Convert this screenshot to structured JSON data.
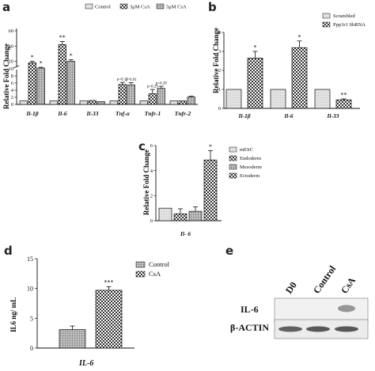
{
  "chart_data": [
    {
      "panel": "a",
      "type": "bar",
      "ylabel": "Relative Fold Change",
      "yticks": [
        "0",
        "2",
        "4",
        "6",
        "8",
        "10",
        "20",
        "40",
        "60"
      ],
      "categories": [
        "Il-1β",
        "Il-6",
        "Il-33",
        "Tnf-α",
        "Tnfr-1",
        "Tnfr-2"
      ],
      "series": [
        {
          "name": "Control",
          "values": [
            1,
            1,
            1,
            1,
            1,
            1
          ],
          "errors": [
            0,
            0,
            0,
            0,
            0,
            0
          ],
          "pattern": "light"
        },
        {
          "name": "3μM CsA",
          "values": [
            18,
            42,
            1.1,
            5.6,
            3.0,
            1.0
          ],
          "errors": [
            2,
            4,
            0.1,
            0.6,
            1.2,
            0.1
          ],
          "pattern": "check"
        },
        {
          "name": "5μM CsA",
          "values": [
            11,
            20,
            0.8,
            5.5,
            4.5,
            2.1
          ],
          "errors": [
            1,
            2,
            0.1,
            0.6,
            0.6,
            0.2
          ],
          "pattern": "dots"
        }
      ],
      "annotations": [
        {
          "cat": 0,
          "series": 1,
          "text": "*"
        },
        {
          "cat": 0,
          "series": 2,
          "text": "*"
        },
        {
          "cat": 1,
          "series": 1,
          "text": "**"
        },
        {
          "cat": 1,
          "series": 2,
          "text": "*"
        },
        {
          "cat": 3,
          "series": 1,
          "text": "p=0.17"
        },
        {
          "cat": 3,
          "series": 2,
          "text": "p=0.91"
        },
        {
          "cat": 4,
          "series": 1,
          "text": "p=0.29"
        },
        {
          "cat": 4,
          "series": 2,
          "text": "p=0.28"
        }
      ]
    },
    {
      "panel": "b",
      "type": "bar",
      "ylabel": "Relative Fold Change",
      "ylim": [
        0,
        4
      ],
      "yticks": [
        "0",
        "1",
        "2",
        "3",
        "4"
      ],
      "categories": [
        "Il-1β",
        "Il-6",
        "Il-33"
      ],
      "series": [
        {
          "name": "Scrambled",
          "values": [
            1,
            1,
            1
          ],
          "errors": [
            0,
            0,
            0
          ],
          "pattern": "light"
        },
        {
          "name": "Ppp3r1 ShRNA",
          "values": [
            2.65,
            3.2,
            0.45
          ],
          "errors": [
            0.35,
            0.35,
            0.05
          ],
          "pattern": "check"
        }
      ],
      "annotations": [
        {
          "cat": 0,
          "series": 1,
          "text": "*"
        },
        {
          "cat": 1,
          "series": 1,
          "text": "*"
        },
        {
          "cat": 2,
          "series": 1,
          "text": "**"
        }
      ]
    },
    {
      "panel": "c",
      "type": "bar",
      "ylabel": "Relative Fold Change",
      "ylim": [
        0,
        6
      ],
      "yticks": [
        "0",
        "2",
        "4",
        "6"
      ],
      "xlabel": "Il- 6",
      "series": [
        {
          "name": "mESC",
          "value": 1,
          "error": 0,
          "pattern": "light"
        },
        {
          "name": "Endoderm",
          "value": 0.55,
          "error": 0.4,
          "pattern": "check"
        },
        {
          "name": "Mesoderm",
          "value": 0.75,
          "error": 0.35,
          "pattern": "dots"
        },
        {
          "name": "Ectoderm",
          "value": 4.85,
          "error": 0.75,
          "pattern": "check"
        }
      ],
      "annotations": [
        {
          "index": 3,
          "text": "*"
        }
      ]
    },
    {
      "panel": "d",
      "type": "bar",
      "ylabel": "IL6 ng/ mL",
      "ylim": [
        0,
        15
      ],
      "yticks": [
        "0",
        "5",
        "10",
        "15"
      ],
      "xlabel": "IL-6",
      "series": [
        {
          "name": "Control",
          "value": 3.1,
          "error": 0.6,
          "pattern": "dots"
        },
        {
          "name": "CsA",
          "value": 9.7,
          "error": 0.6,
          "pattern": "check"
        }
      ],
      "annotations": [
        {
          "index": 1,
          "text": "***"
        }
      ]
    }
  ],
  "panel_labels": {
    "a": "a",
    "b": "b",
    "c": "c",
    "d": "d",
    "e": "e"
  },
  "western_blot": {
    "lanes": [
      "D0",
      "Control",
      "CsA"
    ],
    "rows": [
      "IL-6",
      "β-ACTIN"
    ]
  },
  "colors": {
    "light": "#dcdcdc",
    "dark": "#3a3a3a",
    "frame": "#111111"
  }
}
